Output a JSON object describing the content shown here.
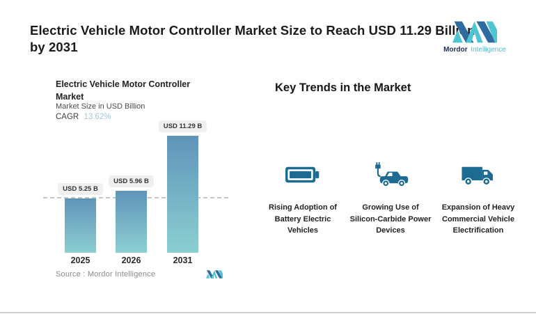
{
  "header": {
    "title": "Electric Vehicle Motor Controller Market Size to Reach USD 11.29 Billion by 2031"
  },
  "brand": {
    "name_bold": "Mordor",
    "name_light": "Intelligence"
  },
  "chart_data": {
    "type": "bar",
    "title": "Electric Vehicle Motor Controller Market",
    "subtitle": "Market Size in USD Billion",
    "cagr_label": "CAGR",
    "cagr_value": "13.62%",
    "categories": [
      "2025",
      "2026",
      "2031"
    ],
    "values": [
      5.25,
      5.96,
      11.29
    ],
    "value_labels": [
      "USD 5.25 B",
      "USD 5.96 B",
      "USD 11.29 B"
    ],
    "ylim": [
      0,
      11.29
    ],
    "reference_line_value": 5.25,
    "grid": "off",
    "legend": "none",
    "source_label": "Source :  Mordor Intelligence"
  },
  "trends": {
    "heading": "Key Trends in the Market",
    "items": [
      {
        "icon": "battery-icon",
        "label": "Rising Adoption of Battery Electric Vehicles"
      },
      {
        "icon": "electric-car-icon",
        "label": "Growing Use of Silicon-Carbide Power Devices"
      },
      {
        "icon": "truck-icon",
        "label": "Expansion of Heavy Commercial Vehicle Electrification"
      }
    ]
  },
  "colors": {
    "brand_dark_blue": "#2e6b9e",
    "brand_teal": "#4ec5d2",
    "icon_blue": "#1e6b92",
    "bar_gradient_top": "#5f94b9",
    "bar_gradient_bottom": "#8ccfd2",
    "cagr_value_text": "#9fc6d8",
    "pill_background": "#eef0f0",
    "dashed_line": "#c6c6c6"
  }
}
